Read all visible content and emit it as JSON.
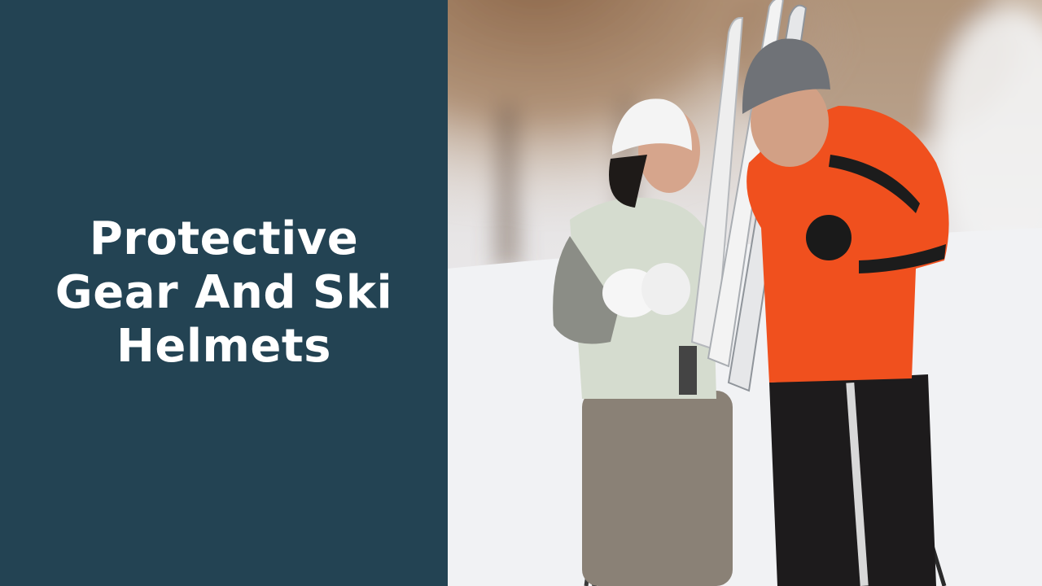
{
  "title": "Protective Gear And Ski Helmets",
  "colors": {
    "panel": "#234353",
    "title_text": "#ffffff",
    "snow": "#f2f3f5",
    "trees": "#8a6446",
    "jacket_man": "#f0501e",
    "jacket_woman": "#d5dccf",
    "hat_man": "#6f7277",
    "hat_woman": "#f4f4f4"
  },
  "image": {
    "subject": "two-skiers-snowy-forest",
    "icon": "photo-icon"
  }
}
